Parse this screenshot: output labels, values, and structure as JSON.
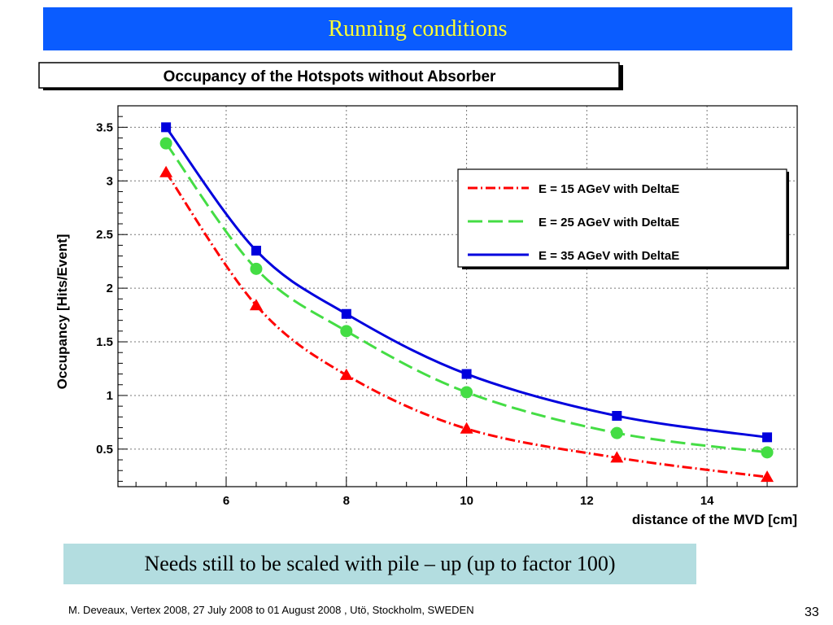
{
  "slide": {
    "title": "Running conditions",
    "note": "Needs still to be scaled with pile – up (up to factor 100)",
    "footer": "M. Deveaux, Vertex 2008, 27 July 2008 to 01 August 2008 , Utö, Stockholm, SWEDEN",
    "page_number": "33",
    "colors": {
      "title_bg": "#0a5cff",
      "title_text": "#ffff33",
      "note_bg": "#b3dde0"
    }
  },
  "chart_data": {
    "type": "line",
    "title": "Occupancy of the Hotspots without Absorber",
    "xlabel": "distance of the MVD [cm]",
    "ylabel": "Occupancy [Hits/Event]",
    "xlim": [
      4.2,
      15.5
    ],
    "ylim": [
      0.15,
      3.7
    ],
    "xticks": [
      "6",
      "8",
      "10",
      "12",
      "14"
    ],
    "xtick_values": [
      6,
      8,
      10,
      12,
      14
    ],
    "yticks": [
      "0.5",
      "1",
      "1.5",
      "2",
      "2.5",
      "3",
      "3.5"
    ],
    "ytick_values": [
      0.5,
      1,
      1.5,
      2,
      2.5,
      3,
      3.5
    ],
    "grid": true,
    "legend_position": "top-right",
    "x": [
      5,
      6.5,
      8,
      10,
      12.5,
      15
    ],
    "series": [
      {
        "name": "E = 15 AGeV with DeltaE",
        "values": [
          3.08,
          1.84,
          1.19,
          0.69,
          0.42,
          0.24
        ],
        "color": "#ff0000",
        "marker": "triangle",
        "dash": "12 4 2 4"
      },
      {
        "name": "E = 25 AGeV with DeltaE",
        "values": [
          3.35,
          2.18,
          1.6,
          1.03,
          0.65,
          0.47
        ],
        "color": "#44dd44",
        "marker": "circle",
        "dash": "18 7"
      },
      {
        "name": "E = 35 AGeV with DeltaE",
        "values": [
          3.5,
          2.35,
          1.76,
          1.2,
          0.81,
          0.61
        ],
        "color": "#0000dd",
        "marker": "square",
        "dash": ""
      }
    ]
  }
}
